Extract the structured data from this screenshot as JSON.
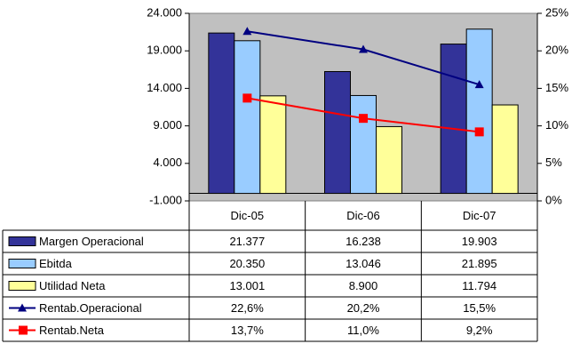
{
  "chart_data": {
    "type": "bar",
    "categories": [
      "Dic-05",
      "Dic-06",
      "Dic-07"
    ],
    "series": [
      {
        "name": "Margen Operacional",
        "type": "bar",
        "color": "#333399",
        "values": [
          21377,
          16238,
          19903
        ],
        "value_labels": [
          "21.377",
          "16.238",
          "19.903"
        ]
      },
      {
        "name": "Ebitda",
        "type": "bar",
        "color": "#99ccff",
        "values": [
          20350,
          13046,
          21895
        ],
        "value_labels": [
          "20.350",
          "13.046",
          "21.895"
        ]
      },
      {
        "name": "Utilidad Neta",
        "type": "bar",
        "color": "#ffff99",
        "values": [
          13001,
          8900,
          11794
        ],
        "value_labels": [
          "13.001",
          "8.900",
          "11.794"
        ]
      },
      {
        "name": "Rentab.Operacional",
        "type": "line",
        "axis": "y2",
        "marker": "triangle",
        "color": "#000080",
        "values": [
          22.6,
          20.2,
          15.5
        ],
        "value_labels": [
          "22,6%",
          "20,2%",
          "15,5%"
        ]
      },
      {
        "name": "Rentab.Neta",
        "type": "line",
        "axis": "y2",
        "marker": "square",
        "color": "#ff0000",
        "values": [
          13.7,
          11.0,
          9.2
        ],
        "value_labels": [
          "13,7%",
          "11,0%",
          "9,2%"
        ]
      }
    ],
    "ylim": [
      -1000,
      24000
    ],
    "yticks": [
      {
        "value": -1000,
        "label": "-1.000"
      },
      {
        "value": 4000,
        "label": "4.000"
      },
      {
        "value": 9000,
        "label": "9.000"
      },
      {
        "value": 14000,
        "label": "14.000"
      },
      {
        "value": 19000,
        "label": "19.000"
      },
      {
        "value": 24000,
        "label": "24.000"
      }
    ],
    "y2lim": [
      0,
      25
    ],
    "y2ticks": [
      {
        "value": 0,
        "label": "0%"
      },
      {
        "value": 5,
        "label": "5%"
      },
      {
        "value": 10,
        "label": "10%"
      },
      {
        "value": 15,
        "label": "15%"
      },
      {
        "value": 20,
        "label": "20%"
      },
      {
        "value": 25,
        "label": "25%"
      }
    ],
    "plot_background": "#c0c0c0",
    "data_table": true
  }
}
